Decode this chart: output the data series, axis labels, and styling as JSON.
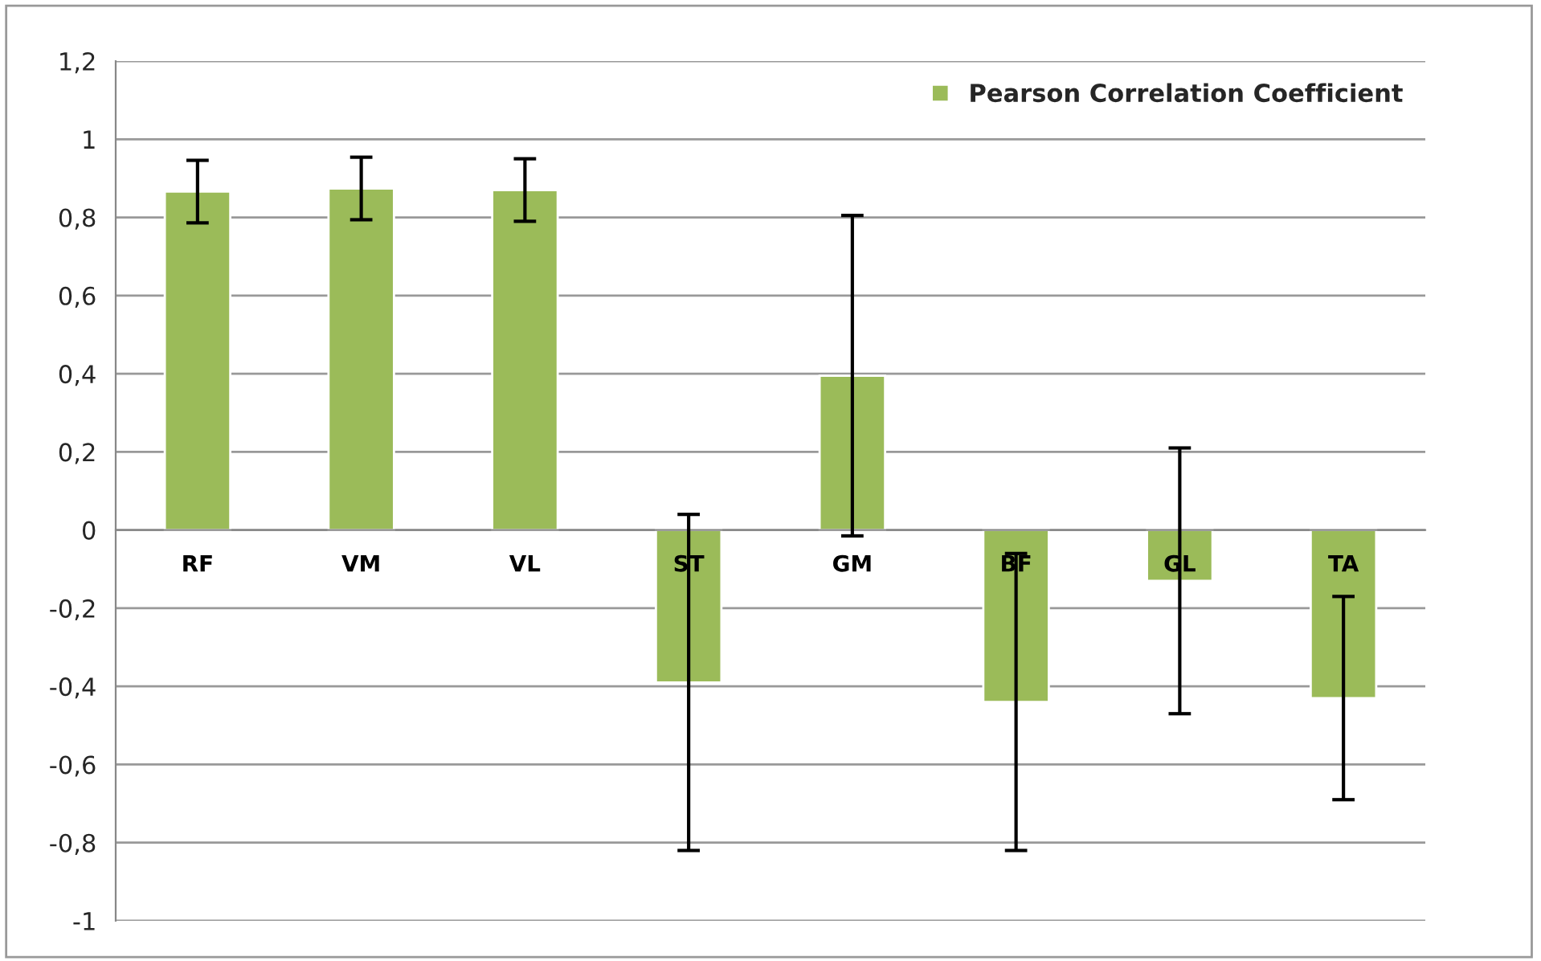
{
  "chart_data": {
    "type": "bar",
    "categories": [
      "RF",
      "VM",
      "VL",
      "ST",
      "GM",
      "BF",
      "GL",
      "TA"
    ],
    "series": [
      {
        "name": "Pearson Correlation Coefficient",
        "color": "#9bbb59",
        "values": [
          0.866,
          0.874,
          0.87,
          -0.39,
          0.395,
          -0.44,
          -0.13,
          -0.43
        ],
        "errors": [
          0.08,
          0.08,
          0.08,
          0.43,
          0.41,
          0.38,
          0.34,
          0.26
        ]
      }
    ],
    "ylim": [
      -1,
      1.2
    ],
    "yticks": [
      -1,
      {
        "value": -0.8,
        "label": "-0,8"
      },
      {
        "value": -0.6,
        "label": "-0,6"
      },
      {
        "value": -0.4,
        "label": "-0,4"
      },
      {
        "value": -0.2,
        "label": "-0,2"
      },
      0,
      {
        "value": 0.2,
        "label": "0,2"
      },
      {
        "value": 0.4,
        "label": "0,4"
      },
      {
        "value": 0.6,
        "label": "0,6"
      },
      {
        "value": 0.8,
        "label": "0,8"
      },
      1,
      {
        "value": 1.2,
        "label": "1,2"
      }
    ],
    "grid": "y",
    "legend": "top right"
  }
}
